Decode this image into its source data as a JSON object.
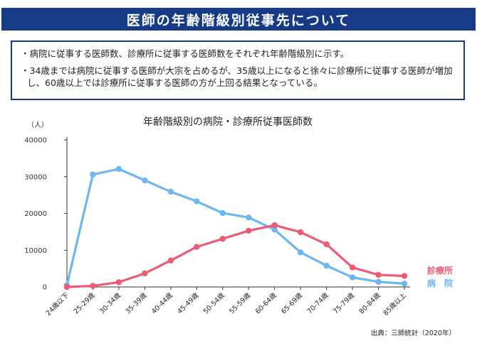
{
  "header": {
    "title": "医師の年齢階級別従事先について"
  },
  "summary": {
    "bullets": [
      "・病院に従事する医師数、診療所に従事する医師数をそれぞれ年齢階級別に示す。",
      "・34歳までは病院に従事する医師が大宗を占めるが、35歳以上になると徐々に診療所に従事する医師が増加し、60歳以上では診療所に従事する医師の方が上回る結果となっている。"
    ]
  },
  "source": "出典：三師統計（2020年）",
  "chart_data": {
    "type": "line",
    "title": "年齢階級別の病院・診療所従事医師数",
    "ylabel": "（人）",
    "xlabel": "",
    "ylim": [
      0,
      40000
    ],
    "yticks": [
      0,
      10000,
      20000,
      30000,
      40000
    ],
    "grid": false,
    "categories": [
      "24歳以下",
      "25-29歳",
      "30-34歳",
      "35-39歳",
      "40-44歳",
      "45-49歳",
      "50-54歳",
      "55-59歳",
      "60-64歳",
      "65-69歳",
      "70-74歳",
      "75-79歳",
      "80-84歳",
      "85歳以上"
    ],
    "series": [
      {
        "name": "病　院",
        "color": "#6cb6f2",
        "values": [
          500,
          30600,
          32100,
          29000,
          25900,
          23300,
          20100,
          18900,
          15600,
          9400,
          5800,
          2600,
          1400,
          900
        ]
      },
      {
        "name": "診療所",
        "color": "#ec5b73",
        "values": [
          0,
          300,
          1300,
          3700,
          7200,
          10900,
          13100,
          15300,
          16800,
          14900,
          11600,
          5300,
          3300,
          3000
        ]
      }
    ],
    "legend_placement": "right, at line ends"
  }
}
